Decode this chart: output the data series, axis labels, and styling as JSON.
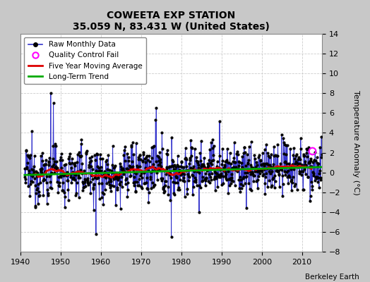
{
  "title": "COWEETA EXP STATION",
  "subtitle": "35.059 N, 83.431 W (United States)",
  "ylabel": "Temperature Anomaly (°C)",
  "credit": "Berkeley Earth",
  "xlim": [
    1940,
    2015
  ],
  "ylim": [
    -8,
    14
  ],
  "yticks": [
    -8,
    -6,
    -4,
    -2,
    0,
    2,
    4,
    6,
    8,
    10,
    12,
    14
  ],
  "xticks": [
    1940,
    1950,
    1960,
    1970,
    1980,
    1990,
    2000,
    2010
  ],
  "fig_bg_color": "#c8c8c8",
  "plot_bg_color": "#ffffff",
  "raw_color": "#3333cc",
  "dot_color": "#000000",
  "ma_color": "#dd0000",
  "trend_color": "#00aa00",
  "qc_fail_x": 2012.5,
  "qc_fail_y": 2.2,
  "seed": 12345
}
